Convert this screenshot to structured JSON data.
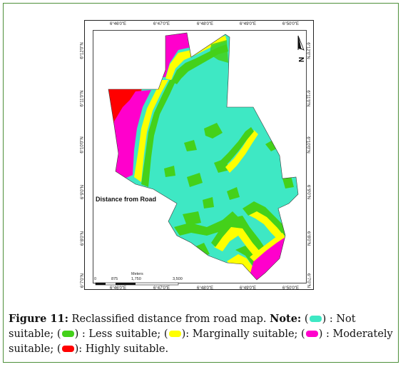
{
  "map": {
    "title": "Distance from Road",
    "top_ticks": [
      "6°46'0\"E",
      "6°47'0\"E",
      "6°48'0\"E",
      "6°49'0\"E",
      "6°50'0\"E"
    ],
    "bottom_ticks": [
      "6°46'0\"E",
      "6°47'0\"E",
      "6°48'0\"E",
      "6°49'0\"E",
      "6°50'0\"E"
    ],
    "left_ticks": [
      "6°12'0\"N",
      "6°11'0\"N",
      "6°10'0\"N",
      "6°9'0\"N",
      "6°8'0\"N",
      "6°7'0\"N"
    ],
    "right_ticks": [
      "6°12'0\"N",
      "6°11'0\"N",
      "6°10'0\"N",
      "6°9'0\"N",
      "6°8'0\"N",
      "6°7'0\"N"
    ],
    "north_label": "N",
    "scale": {
      "unit": "Meters",
      "labels": [
        "0",
        "875",
        "1,750",
        "3,500"
      ]
    },
    "colors": {
      "not_suitable": "#3ee8c4",
      "less_suitable": "#44d11a",
      "marginally_suitable": "#ffff00",
      "moderately_suitable": "#ff00cc",
      "highly_suitable": "#ff0000"
    }
  },
  "caption": {
    "figure_label": "Figure 11:",
    "text": "Reclassified distance from road map.",
    "note_label": "Note:",
    "items": [
      {
        "label": "Not suitable;",
        "color": "#3ee8c4"
      },
      {
        "label": "Less suitable;",
        "color": "#44d11a"
      },
      {
        "label": "Marginally suitable;",
        "color": "#ffff00"
      },
      {
        "label": "Moderately suitable;",
        "color": "#ff00cc"
      },
      {
        "label": "Highly suitable.",
        "color": "#ff0000"
      }
    ]
  }
}
